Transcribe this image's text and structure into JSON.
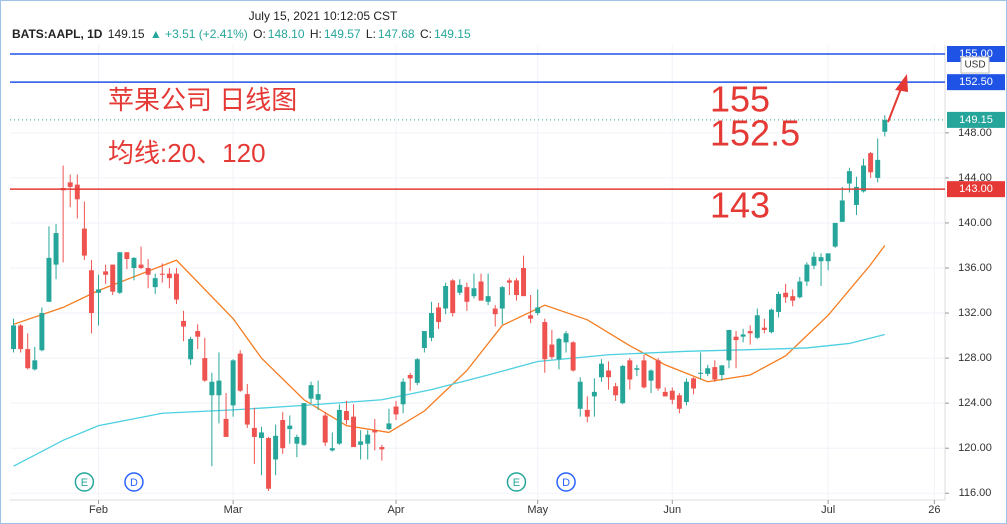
{
  "chart_data": {
    "type": "candlestick",
    "header": {
      "time": "July 15, 2021 10:12:05 CST",
      "symbol": "BATS:AAPL, 1D",
      "last": "149.15",
      "change": "▲ +3.51 (+2.41%)",
      "o_label": "O:",
      "o": "148.10",
      "h_label": "H:",
      "h": "149.57",
      "l_label": "L:",
      "l": "147.68",
      "c_label": "C:",
      "c": "149.15"
    },
    "annotations": [
      {
        "text": "苹果公司 日线图"
      },
      {
        "text": "均线:20、120"
      },
      {
        "text": "155"
      },
      {
        "text": "152.5"
      },
      {
        "text": "143"
      }
    ],
    "currency": "USD",
    "up_color": "#26a69a",
    "down_color": "#ef5350",
    "xlim": [
      -0.5,
      131.5
    ],
    "ylim": [
      115.4,
      155.8
    ],
    "xticks": [
      {
        "value": 12,
        "label": "Feb"
      },
      {
        "value": 31,
        "label": "Mar"
      },
      {
        "value": 54,
        "label": "Apr"
      },
      {
        "value": 74,
        "label": "May"
      },
      {
        "value": 93,
        "label": "Jun"
      },
      {
        "value": 115,
        "label": "Jul"
      },
      {
        "value": 130,
        "label": "26"
      }
    ],
    "yticks": [
      {
        "value": 116,
        "label": "116.00"
      },
      {
        "value": 120,
        "label": "120.00"
      },
      {
        "value": 124,
        "label": "124.00"
      },
      {
        "value": 128,
        "label": "128.00"
      },
      {
        "value": 132,
        "label": "132.00"
      },
      {
        "value": 136,
        "label": "136.00"
      },
      {
        "value": 140,
        "label": "140.00"
      },
      {
        "value": 144,
        "label": "144.00"
      },
      {
        "value": 148,
        "label": "148.00"
      }
    ],
    "price_lines": [
      {
        "value": 155,
        "label": "155.00",
        "color": "#1e53e5",
        "style": "solid"
      },
      {
        "value": 152.5,
        "label": "152.50",
        "color": "#1e53e5",
        "style": "solid"
      },
      {
        "value": 149.15,
        "label": "149.15",
        "color": "#26a69a",
        "style": "dotted"
      },
      {
        "value": 143,
        "label": "143.00",
        "color": "#e53935",
        "style": "solid"
      }
    ],
    "events": [
      {
        "x": 10,
        "label": "E",
        "color": "#26a69a"
      },
      {
        "x": 17,
        "label": "D",
        "color": "#2962ff"
      },
      {
        "x": 71,
        "label": "E",
        "color": "#26a69a"
      },
      {
        "x": 78,
        "label": "D",
        "color": "#2962ff"
      }
    ],
    "ma_lines": [
      {
        "color": "#f57c20",
        "x": [
          0,
          7,
          12,
          23,
          31,
          35,
          41,
          47,
          53,
          58,
          64,
          69,
          75,
          81,
          87,
          92,
          98,
          104,
          109,
          115,
          121,
          123
        ],
        "values": [
          131,
          132.5,
          134,
          136.7,
          131.5,
          128,
          124.3,
          122,
          121.4,
          123.3,
          126.9,
          130.9,
          132.7,
          131.4,
          129.1,
          127.4,
          125.9,
          126.5,
          128.2,
          131.8,
          136.3,
          138
        ]
      },
      {
        "color": "#4dd0e1",
        "x": [
          0,
          7,
          12,
          21,
          31,
          41,
          52,
          59,
          67,
          74,
          84,
          95,
          107,
          112,
          118,
          123
        ],
        "values": [
          118.4,
          120.7,
          122,
          123.1,
          123.4,
          123.8,
          124.3,
          125.2,
          126.5,
          127.7,
          128.3,
          128.6,
          128.8,
          128.9,
          129.3,
          130.1
        ]
      }
    ],
    "open": [
      128.8,
      130.9,
      128.8,
      127.0,
      128.7,
      133.0,
      136.3,
      143.1,
      143.6,
      143.4,
      139.5,
      135.8,
      133.8,
      135.7,
      136.3,
      133.8,
      137.4,
      136.0,
      136.3,
      136.0,
      134.3,
      135.5,
      135.5,
      135.5,
      131.3,
      127.9,
      130.4,
      128.0,
      124.7,
      124.7,
      122.6,
      123.8,
      128.4,
      124.8,
      121.8,
      120.9,
      120.9,
      119.0,
      122.5,
      121.7,
      120.4,
      120.3,
      124.4,
      124.3,
      122.9,
      119.8,
      120.4,
      123.3,
      122.8,
      120.3,
      120.4,
      121.6,
      120.1,
      121.7,
      123.7,
      123.9,
      126.5,
      125.8,
      128.9,
      129.8,
      132.5,
      132.4,
      134.9,
      133.8,
      134.3,
      133.5,
      134.8,
      133.0,
      132.4,
      132.4,
      134.9,
      134.9,
      136.0,
      131.8,
      132.0,
      131.2,
      129.2,
      127.9,
      129.4,
      129.4,
      123.5,
      123.4,
      124.6,
      126.3,
      126.9,
      125.5,
      124.0,
      127.8,
      126.96,
      127.8,
      126.0,
      127.8,
      125.0,
      125.1,
      124.7,
      124.1,
      126.2,
      126.6,
      126.6,
      127.2,
      126.5,
      127.8,
      129.9,
      129.9,
      130.4,
      129.8,
      130.7,
      130.3,
      132.1,
      133.8,
      133.5,
      133.4,
      134.8,
      136.2,
      136.6,
      136.6,
      137.9,
      140.1,
      143.5,
      141.6,
      142.8,
      146.2,
      144.0,
      148.1
    ],
    "high": [
      131.5,
      131.0,
      130.2,
      129.0,
      132.5,
      139.7,
      139.9,
      145.1,
      144.3,
      144.3,
      141.9,
      136.7,
      135.4,
      136.3,
      136.3,
      137.4,
      137.4,
      136.96,
      137.9,
      136.8,
      135.5,
      136.4,
      136.0,
      136.0,
      132.2,
      129.9,
      131.0,
      129.8,
      126.7,
      128.5,
      124.9,
      127.9,
      128.7,
      125.7,
      123.6,
      121.9,
      121.0,
      122.1,
      123.2,
      122.9,
      121.2,
      124.0,
      125.9,
      126.0,
      123.2,
      121.4,
      123.9,
      124.2,
      123.9,
      121.6,
      121.6,
      122.6,
      120.3,
      123.5,
      124.2,
      126.2,
      126.7,
      128.0,
      130.4,
      133.0,
      132.9,
      134.7,
      135.0,
      135.0,
      134.7,
      135.5,
      135.5,
      135.5,
      132.7,
      134.4,
      135.1,
      135.1,
      137.1,
      133.6,
      134.1,
      131.5,
      130.5,
      129.8,
      130.4,
      129.5,
      126.3,
      124.6,
      126.2,
      127.9,
      127.7,
      125.8,
      127.4,
      128.0,
      127.4,
      128.3,
      127.0,
      128.0,
      125.4,
      125.4,
      124.9,
      126.2,
      126.3,
      128.5,
      127.4,
      127.8,
      127.4,
      130.5,
      130.4,
      130.6,
      130.9,
      132.4,
      131.5,
      132.4,
      133.9,
      134.6,
      134.1,
      135.2,
      136.5,
      137.4,
      137.3,
      137.3,
      140.0,
      143.2,
      144.9,
      144.1,
      145.7,
      146.3,
      147.5,
      149.57
    ],
    "low": [
      128.5,
      128.5,
      127.0,
      126.9,
      128.6,
      133.0,
      135.0,
      136.5,
      141.4,
      140.4,
      136.7,
      130.2,
      130.9,
      134.6,
      133.6,
      133.7,
      135.9,
      134.9,
      135.9,
      134.2,
      133.7,
      134.7,
      134.2,
      132.8,
      129.5,
      127.4,
      128.8,
      125.9,
      118.4,
      122.2,
      121.2,
      122.8,
      125.0,
      121.8,
      118.6,
      117.6,
      116.2,
      117.6,
      119.5,
      120.4,
      119.2,
      120.2,
      124.0,
      123.4,
      120.2,
      119.7,
      120.3,
      122.1,
      120.3,
      119.0,
      119.0,
      119.8,
      118.9,
      121.6,
      122.5,
      123.1,
      125.1,
      125.6,
      128.5,
      129.5,
      130.6,
      131.9,
      131.7,
      133.6,
      132.2,
      133.3,
      133.3,
      132.7,
      130.8,
      131.0,
      133.6,
      133.1,
      133.7,
      131.1,
      131.8,
      126.7,
      127.9,
      127.0,
      128.5,
      126.8,
      122.8,
      122.3,
      122.8,
      125.9,
      125.2,
      124.2,
      123.9,
      125.2,
      126.4,
      125.3,
      124.9,
      125.1,
      124.6,
      123.9,
      123.1,
      123.8,
      124.8,
      126.1,
      126.4,
      125.9,
      126.0,
      127.1,
      127.1,
      129.4,
      129.2,
      129.7,
      130.2,
      130.2,
      131.6,
      132.9,
      132.6,
      133.3,
      134.4,
      135.9,
      134.4,
      135.8,
      137.8,
      140.1,
      142.7,
      140.7,
      142.7,
      144.0,
      143.6,
      147.68
    ],
    "close": [
      130.9,
      128.8,
      127.1,
      127.8,
      132.0,
      136.9,
      139.1,
      142.9,
      143.2,
      142.1,
      137.1,
      132.0,
      134.1,
      135.4,
      133.9,
      137.4,
      136.8,
      136.9,
      136.0,
      135.4,
      135.1,
      135.4,
      135.1,
      133.2,
      130.8,
      129.7,
      129.9,
      126.0,
      125.9,
      126.0,
      121.0,
      127.8,
      125.1,
      122.1,
      121.0,
      121.4,
      116.4,
      121.1,
      120.0,
      122.0,
      121.0,
      124.0,
      125.6,
      124.8,
      120.5,
      120.0,
      123.4,
      122.5,
      120.1,
      120.6,
      121.2,
      121.4,
      119.9,
      122.2,
      123.0,
      125.9,
      126.2,
      127.9,
      130.4,
      132.0,
      131.2,
      134.4,
      132.0,
      134.5,
      133.0,
      134.2,
      133.1,
      133.5,
      131.9,
      134.3,
      134.7,
      133.6,
      133.5,
      131.5,
      132.5,
      127.9,
      128.1,
      129.7,
      130.2,
      126.9,
      125.9,
      122.8,
      125.0,
      127.5,
      126.3,
      124.7,
      127.3,
      126.1,
      127.1,
      125.4,
      126.9,
      125.3,
      124.6,
      124.3,
      123.5,
      125.9,
      125.3,
      126.7,
      127.1,
      126.1,
      127.35,
      130.5,
      129.6,
      130.1,
      130.2,
      131.8,
      130.5,
      132.3,
      133.7,
      133.4,
      133.1,
      134.8,
      136.3,
      137.0,
      136.96,
      137.3,
      140.0,
      142.0,
      144.6,
      143.2,
      145.1,
      144.5,
      145.6,
      149.15
    ]
  }
}
